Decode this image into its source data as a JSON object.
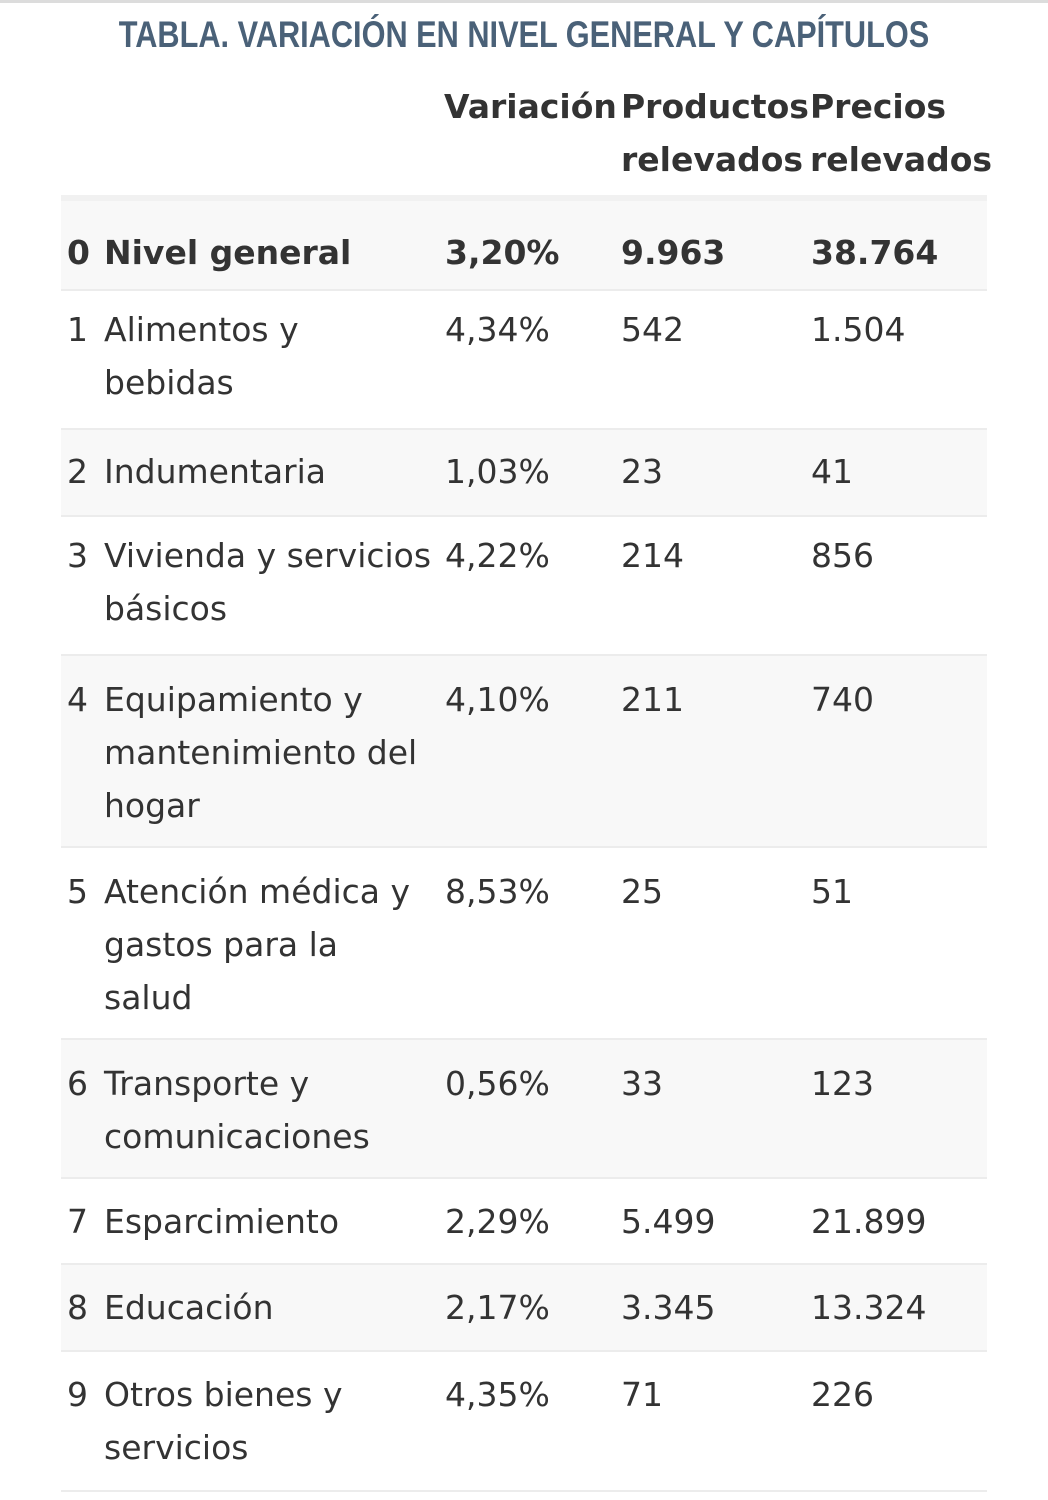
{
  "title": "TABLA. VARIACIÓN EN NIVEL GENERAL Y CAPÍTULOS",
  "headers": {
    "variacion": "Variación",
    "productos_line1": "Productos",
    "productos_line2": "relevados",
    "precios_line1": "Precios",
    "precios_line2": "relevados"
  },
  "rows": [
    {
      "num": "0",
      "name": "Nivel general",
      "variacion": "3,20%",
      "productos": "9.963",
      "precios": "38.764"
    },
    {
      "num": "1",
      "name": "Alimentos y bebidas",
      "variacion": "4,34%",
      "productos": "542",
      "precios": "1.504"
    },
    {
      "num": "2",
      "name": "Indumentaria",
      "variacion": "1,03%",
      "productos": "23",
      "precios": "41"
    },
    {
      "num": "3",
      "name": "Vivienda y servicios básicos",
      "variacion": "4,22%",
      "productos": "214",
      "precios": "856"
    },
    {
      "num": "4",
      "name": "Equipamiento y mantenimiento del hogar",
      "variacion": "4,10%",
      "productos": "211",
      "precios": "740"
    },
    {
      "num": "5",
      "name": "Atención médica y gastos para la salud",
      "variacion": "8,53%",
      "productos": "25",
      "precios": "51"
    },
    {
      "num": "6",
      "name": "Transporte y comunicaciones",
      "variacion": "0,56%",
      "productos": "33",
      "precios": "123"
    },
    {
      "num": "7",
      "name": "Esparcimiento",
      "variacion": "2,29%",
      "productos": "5.499",
      "precios": "21.899"
    },
    {
      "num": "8",
      "name": "Educación",
      "variacion": "2,17%",
      "productos": "3.345",
      "precios": "13.324"
    },
    {
      "num": "9",
      "name": "Otros bienes y servicios",
      "variacion": "4,35%",
      "productos": "71",
      "precios": "226"
    }
  ]
}
